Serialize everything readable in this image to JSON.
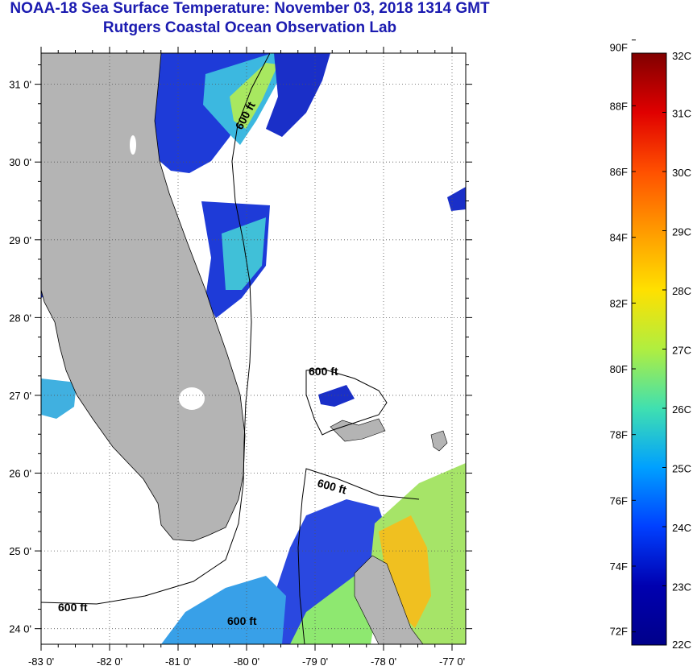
{
  "title": "NOAA-18 Sea Surface Temperature:  November 03, 2018 1314 GMT",
  "subtitle": "Rutgers Coastal Ocean Observation Lab",
  "map": {
    "lon_labels": [
      "-83 0'",
      "-82 0'",
      "-81 0'",
      "-80 0'",
      "-79 0'",
      "-78 0'",
      "-77 0'"
    ],
    "lat_labels": [
      "31 0'",
      "30 0'",
      "29 0'",
      "28 0'",
      "27 0'",
      "26 0'",
      "25 0'",
      "24 0'"
    ],
    "lon_range": [
      -83,
      -76.8
    ],
    "lat_range": [
      23.8,
      31.4
    ],
    "contour_labels": [
      "600 ft",
      "600 ft",
      "600 ft",
      "600 ft",
      "600 ft"
    ],
    "colors": {
      "land": "#b4b4b4",
      "no_data": "#ffffff",
      "frame": "#000000"
    }
  },
  "colorbar": {
    "f_labels": [
      "90F",
      "88F",
      "86F",
      "84F",
      "82F",
      "80F",
      "78F",
      "76F",
      "74F",
      "72F"
    ],
    "c_labels": [
      "32C",
      "31C",
      "30C",
      "29C",
      "28C",
      "27C",
      "26C",
      "25C",
      "24C",
      "23C",
      "22C"
    ],
    "range_c": [
      22,
      32
    ],
    "stops": [
      "#800000",
      "#e00000",
      "#ff5000",
      "#ff9a00",
      "#ffe000",
      "#b0ee40",
      "#40e0b0",
      "#00a0ff",
      "#0040ff",
      "#0000b0",
      "#00008a"
    ]
  }
}
